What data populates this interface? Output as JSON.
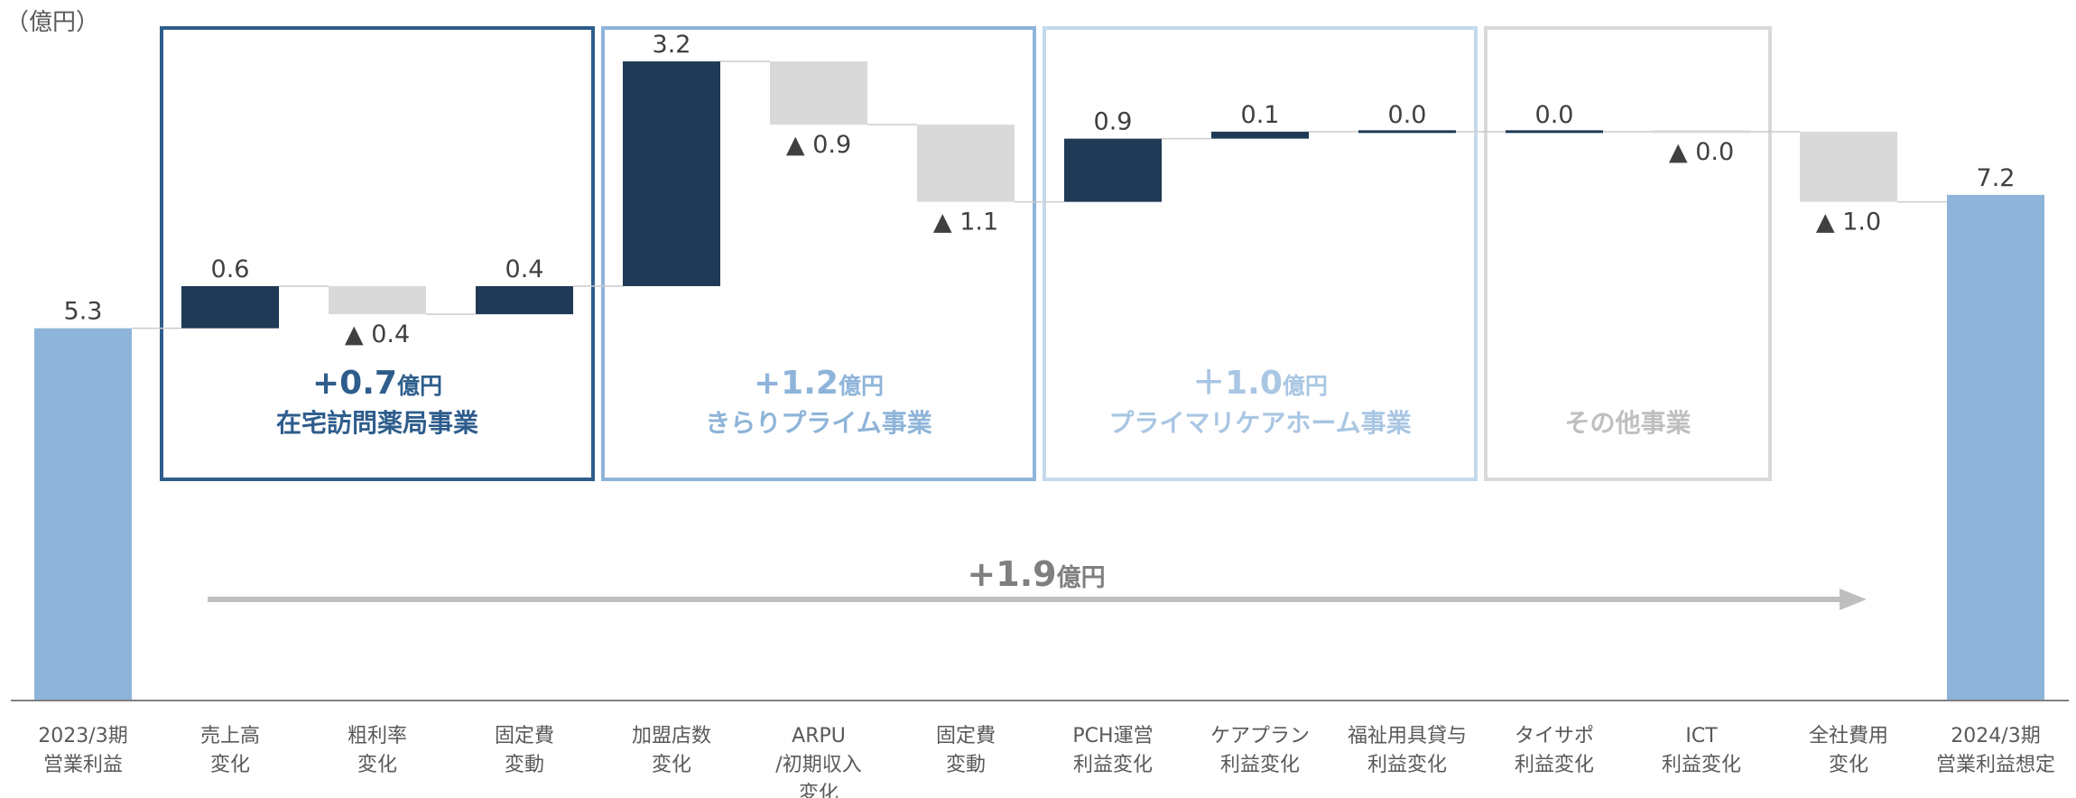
{
  "unit_label": "（億円）",
  "chart_data": {
    "type": "waterfall",
    "categories": [
      [
        "2023/3期",
        "営業利益"
      ],
      [
        "売上高",
        "変化"
      ],
      [
        "粗利率",
        "変化"
      ],
      [
        "固定費",
        "変動"
      ],
      [
        "加盟店数",
        "変化"
      ],
      [
        "ARPU",
        "/初期収入",
        "変化"
      ],
      [
        "固定費",
        "変動"
      ],
      [
        "PCH運営",
        "利益変化"
      ],
      [
        "ケアプラン",
        "利益変化"
      ],
      [
        "福祉用具貸与",
        "利益変化"
      ],
      [
        "タイサポ",
        "利益変化"
      ],
      [
        "ICT",
        "利益変化"
      ],
      [
        "全社費用",
        "変化"
      ],
      [
        "2024/3期",
        "営業利益想定"
      ]
    ],
    "values": [
      5.3,
      0.6,
      -0.4,
      0.4,
      3.2,
      -0.9,
      -1.1,
      0.9,
      0.1,
      0.0,
      0.0,
      -0.0,
      -1.0,
      7.2
    ],
    "kinds": [
      "total",
      "up",
      "down",
      "up",
      "up",
      "down",
      "down",
      "up",
      "up",
      "up",
      "up",
      "down",
      "down",
      "total"
    ],
    "labels": [
      "5.3",
      "0.6",
      "▲ 0.4",
      "0.4",
      "3.2",
      "▲ 0.9",
      "▲ 1.1",
      "0.9",
      "0.1",
      "0.0",
      "0.0",
      "▲ 0.0",
      "▲ 1.0",
      "7.2"
    ],
    "ylim": [
      0,
      9.5
    ],
    "colors": {
      "total": "#8eb4d9",
      "up": "#1e3a56",
      "down": "#d9d9d9",
      "connector": "#cccccc",
      "axis": "#7f7f7f"
    },
    "groups": [
      {
        "amount": "+0.7",
        "unit": "億円",
        "name": "在宅訪問薬局事業",
        "first": 1,
        "last": 3,
        "color": "#2e5d8c",
        "text_color": "#2e5d8c"
      },
      {
        "amount": "+1.2",
        "unit": "億円",
        "name": "きらりプライム事業",
        "first": 4,
        "last": 6,
        "color": "#8eb4d9",
        "text_color": "#8eb4d9"
      },
      {
        "amount": "＋1.0",
        "unit": "億円",
        "name": "プライマリケアホーム事業",
        "first": 7,
        "last": 9,
        "color": "#c5d9ea",
        "text_color": "#a9c6e3"
      },
      {
        "amount": "",
        "unit": "",
        "name": "その他事業",
        "first": 10,
        "last": 11,
        "color": "#d9d9d9",
        "text_color": "#bfbfbf"
      }
    ],
    "total_change": {
      "amount": "+1.9",
      "unit": "億円",
      "color": "#bfbfbf"
    }
  }
}
